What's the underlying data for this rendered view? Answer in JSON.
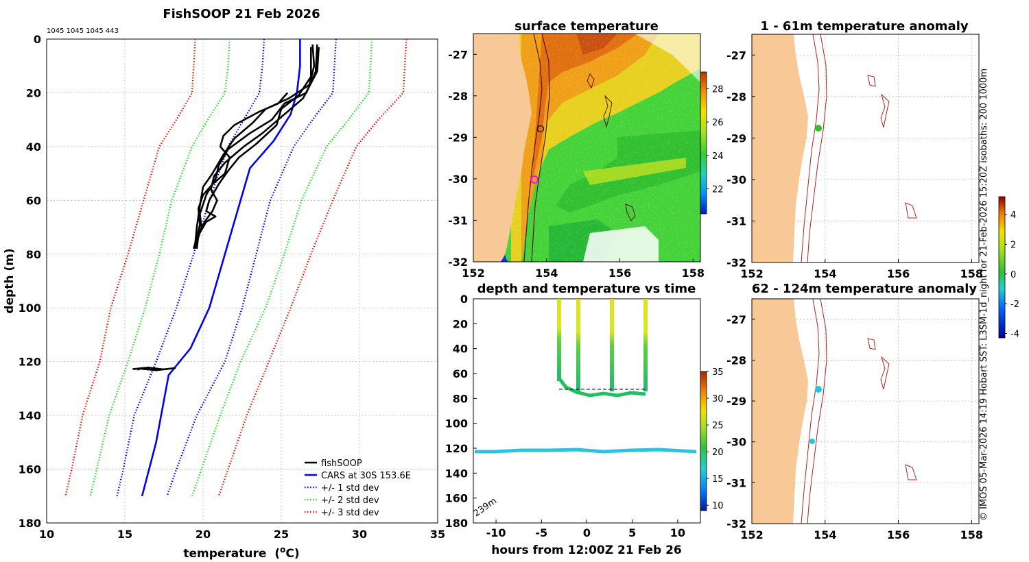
{
  "chart_data": [
    {
      "type": "line",
      "title": "FishSOOP 21 Feb 2026",
      "counts_label": "1045 1045 1045 443",
      "xlabel": "temperature",
      "xlabel_unit": "(",
      "xlabel_sup": "o",
      "xlabel_unit_end": "C)",
      "ylabel": "depth (m)",
      "xlim": [
        10,
        35
      ],
      "ylim": [
        180,
        0
      ],
      "xticks": [
        "10",
        "15",
        "20",
        "25",
        "30",
        "35"
      ],
      "yticks": [
        "0",
        "20",
        "40",
        "60",
        "80",
        "100",
        "120",
        "140",
        "160",
        "180"
      ],
      "legend": [
        {
          "label": "fishSOOP",
          "color": "#000000",
          "style": "solid"
        },
        {
          "label": "CARS at 30S 153.6E",
          "color": "#0000ee",
          "style": "solid"
        },
        {
          "label": "+/- 1 std dev",
          "color": "#0000ee",
          "style": "dotted"
        },
        {
          "label": "+/- 2 std dev",
          "color": "#22dd22",
          "style": "dotted"
        },
        {
          "label": "+/- 3 std dev",
          "color": "#ee1100",
          "style": "dotted"
        }
      ],
      "series": [
        {
          "name": "CARS at 30S 153.6E",
          "color": "#0000ee",
          "style": "solid",
          "points": [
            [
              26.2,
              0
            ],
            [
              26.2,
              10
            ],
            [
              26.0,
              20
            ],
            [
              25.6,
              28
            ],
            [
              24.5,
              38
            ],
            [
              23.0,
              48
            ],
            [
              22.4,
              60
            ],
            [
              21.4,
              80
            ],
            [
              20.4,
              100
            ],
            [
              19.2,
              115
            ],
            [
              17.8,
              125
            ],
            [
              17.0,
              150
            ],
            [
              16.1,
              170
            ]
          ]
        },
        {
          "name": "+1 std dev",
          "color": "#0000ee",
          "style": "dotted",
          "points": [
            [
              28.5,
              0
            ],
            [
              28.4,
              10
            ],
            [
              28.3,
              20
            ],
            [
              27.0,
              30
            ],
            [
              25.8,
              40
            ],
            [
              24.3,
              60
            ],
            [
              23.4,
              80
            ],
            [
              22.5,
              100
            ],
            [
              21.4,
              120
            ],
            [
              19.6,
              140
            ],
            [
              18.3,
              160
            ],
            [
              17.7,
              170
            ]
          ]
        },
        {
          "name": "-1 std dev",
          "color": "#0000ee",
          "style": "dotted",
          "points": [
            [
              23.9,
              0
            ],
            [
              23.8,
              10
            ],
            [
              23.6,
              20
            ],
            [
              22.6,
              30
            ],
            [
              21.6,
              40
            ],
            [
              20.4,
              60
            ],
            [
              19.4,
              80
            ],
            [
              18.3,
              100
            ],
            [
              17.0,
              120
            ],
            [
              15.6,
              140
            ],
            [
              14.9,
              160
            ],
            [
              14.5,
              170
            ]
          ]
        },
        {
          "name": "+2 std dev",
          "color": "#22dd22",
          "style": "dotted",
          "points": [
            [
              30.8,
              0
            ],
            [
              30.7,
              10
            ],
            [
              30.6,
              20
            ],
            [
              29.3,
              30
            ],
            [
              27.9,
              40
            ],
            [
              26.3,
              60
            ],
            [
              25.2,
              80
            ],
            [
              24.0,
              100
            ],
            [
              22.4,
              120
            ],
            [
              21.1,
              140
            ],
            [
              19.9,
              160
            ],
            [
              19.3,
              170
            ]
          ]
        },
        {
          "name": "-2 std dev",
          "color": "#22dd22",
          "style": "dotted",
          "points": [
            [
              21.7,
              0
            ],
            [
              21.6,
              10
            ],
            [
              21.4,
              20
            ],
            [
              20.3,
              30
            ],
            [
              19.3,
              40
            ],
            [
              18.0,
              60
            ],
            [
              17.2,
              80
            ],
            [
              16.3,
              100
            ],
            [
              15.2,
              120
            ],
            [
              14.0,
              140
            ],
            [
              13.2,
              160
            ],
            [
              12.8,
              170
            ]
          ]
        },
        {
          "name": "+3 std dev",
          "color": "#ee1100",
          "style": "dotted",
          "points": [
            [
              33.0,
              0
            ],
            [
              32.9,
              10
            ],
            [
              32.8,
              20
            ],
            [
              31.2,
              30
            ],
            [
              29.8,
              40
            ],
            [
              28.3,
              60
            ],
            [
              26.9,
              80
            ],
            [
              25.6,
              100
            ],
            [
              24.2,
              120
            ],
            [
              22.8,
              140
            ],
            [
              21.6,
              160
            ],
            [
              21.0,
              170
            ]
          ]
        },
        {
          "name": "-3 std dev",
          "color": "#ee1100",
          "style": "dotted",
          "points": [
            [
              19.5,
              0
            ],
            [
              19.4,
              10
            ],
            [
              19.3,
              20
            ],
            [
              18.3,
              30
            ],
            [
              17.2,
              40
            ],
            [
              16.2,
              60
            ],
            [
              15.2,
              80
            ],
            [
              14.1,
              100
            ],
            [
              13.4,
              120
            ],
            [
              12.3,
              140
            ],
            [
              11.6,
              160
            ],
            [
              11.2,
              170
            ]
          ]
        },
        {
          "name": "fishSOOP",
          "color": "#000000",
          "style": "solid",
          "points": [
            [
              27.0,
              2
            ],
            [
              27.1,
              10
            ],
            [
              26.8,
              17
            ],
            [
              25.5,
              22
            ],
            [
              24.0,
              26
            ],
            [
              23.2,
              31
            ],
            [
              22.0,
              37
            ],
            [
              21.3,
              43
            ],
            [
              20.6,
              50
            ],
            [
              20.0,
              55
            ],
            [
              19.8,
              62
            ],
            [
              19.6,
              70
            ],
            [
              19.5,
              76
            ],
            [
              19.4,
              78
            ]
          ]
        },
        {
          "name": "fishSOOP",
          "color": "#000000",
          "style": "solid",
          "points": [
            [
              27.3,
              2
            ],
            [
              27.2,
              12
            ],
            [
              26.6,
              20
            ],
            [
              25.2,
              24
            ],
            [
              24.4,
              30
            ],
            [
              23.0,
              35
            ],
            [
              21.6,
              41
            ],
            [
              21.0,
              47
            ],
            [
              20.8,
              52
            ],
            [
              20.2,
              58
            ],
            [
              19.8,
              65
            ],
            [
              19.9,
              70
            ],
            [
              19.6,
              75
            ],
            [
              19.5,
              78
            ]
          ]
        },
        {
          "name": "fishSOOP",
          "color": "#000000",
          "style": "solid",
          "points": [
            [
              26.9,
              3
            ],
            [
              26.9,
              14
            ],
            [
              26.1,
              21
            ],
            [
              25.0,
              26
            ],
            [
              24.7,
              32
            ],
            [
              23.4,
              39
            ],
            [
              22.3,
              44
            ],
            [
              21.6,
              49
            ],
            [
              21.0,
              54
            ],
            [
              20.4,
              60
            ],
            [
              20.2,
              64
            ],
            [
              20.8,
              66
            ],
            [
              20.2,
              68
            ],
            [
              19.8,
              72
            ],
            [
              19.5,
              77
            ]
          ]
        },
        {
          "name": "fishSOOP",
          "color": "#000000",
          "style": "solid",
          "points": [
            [
              27.4,
              3
            ],
            [
              27.3,
              12
            ],
            [
              26.4,
              22
            ],
            [
              25.6,
              26
            ],
            [
              24.8,
              30
            ],
            [
              23.8,
              35
            ],
            [
              22.6,
              40
            ],
            [
              21.4,
              46
            ],
            [
              20.7,
              51
            ],
            [
              20.5,
              56
            ],
            [
              20.9,
              60
            ],
            [
              20.6,
              64
            ],
            [
              20.1,
              68
            ],
            [
              19.7,
              73
            ],
            [
              19.6,
              78
            ]
          ]
        },
        {
          "name": "fishSOOP",
          "color": "#000000",
          "style": "solid",
          "points": [
            [
              25.4,
              20
            ],
            [
              24.8,
              24
            ],
            [
              23.6,
              27
            ],
            [
              22.0,
              32
            ],
            [
              21.3,
              36
            ],
            [
              21.1,
              40
            ],
            [
              21.7,
              44
            ],
            [
              21.4,
              50
            ],
            [
              20.6,
              54
            ],
            [
              20.0,
              58
            ],
            [
              19.7,
              63
            ],
            [
              19.8,
              69
            ],
            [
              19.6,
              74
            ],
            [
              19.4,
              78
            ]
          ]
        },
        {
          "name": "fishSOOP",
          "color": "#000000",
          "style": "solid",
          "points": [
            [
              15.5,
              122.8
            ],
            [
              16.5,
              122.2
            ],
            [
              17.5,
              122.9
            ],
            [
              18.2,
              122.4
            ],
            [
              17.0,
              123.2
            ],
            [
              16.0,
              122.6
            ],
            [
              15.8,
              123.0
            ]
          ]
        }
      ]
    },
    {
      "type": "heatmap",
      "title": "surface temperature",
      "xticks": [
        "152",
        "154",
        "156",
        "158"
      ],
      "yticks": [
        "-27",
        "-28",
        "-29",
        "-30",
        "-31",
        "-32"
      ],
      "xlim": [
        152,
        158.2
      ],
      "ylim": [
        -32,
        -26.5
      ],
      "colorbar": {
        "range": [
          20.5,
          29
        ],
        "ticks": [
          "22",
          "24",
          "26",
          "28"
        ]
      }
    },
    {
      "type": "scatter",
      "title": "1 - 61m temperature anomaly",
      "xticks": [
        "152",
        "154",
        "156",
        "158"
      ],
      "yticks": [
        "-27",
        "-28",
        "-29",
        "-30",
        "-31",
        "-32"
      ],
      "xlim": [
        152,
        158.2
      ],
      "ylim": [
        -32,
        -26.5
      ],
      "points": [
        {
          "lon": 153.72,
          "lat": -28.75,
          "anomaly": 0.2
        }
      ]
    },
    {
      "type": "scatter",
      "title": "depth and temperature vs time",
      "xlabel": "hours from 12:00Z 21 Feb 26",
      "xticks": [
        "-10",
        "-5",
        "0",
        "5",
        "10"
      ],
      "yticks": [
        "0",
        "20",
        "40",
        "60",
        "80",
        "100",
        "120",
        "140",
        "160",
        "180"
      ],
      "xlim": [
        -12.5,
        12.5
      ],
      "ylim": [
        180,
        0
      ],
      "annotation": "239m",
      "colorbar": {
        "range": [
          9,
          35
        ],
        "ticks": [
          "10",
          "15",
          "20",
          "25",
          "30",
          "35"
        ]
      }
    },
    {
      "type": "scatter",
      "title": "62 - 124m temperature anomaly",
      "xticks": [
        "152",
        "154",
        "156",
        "158"
      ],
      "yticks": [
        "-27",
        "-28",
        "-29",
        "-30",
        "-31",
        "-32"
      ],
      "xlim": [
        152,
        158.2
      ],
      "ylim": [
        -32,
        -26.5
      ],
      "points": [
        {
          "lon": 153.72,
          "lat": -28.75,
          "anomaly": -1.3
        },
        {
          "lon": 153.55,
          "lat": -30.05,
          "anomaly": -1.2
        }
      ],
      "colorbar": {
        "range": [
          -4.3,
          5.2
        ],
        "ticks": [
          "4",
          "2",
          "0",
          "-2",
          "-4"
        ]
      }
    }
  ],
  "side_note": "© IMOS 05-Mar-2026 14:19 Hobart SST: L3SM-1d_night for 21-Feb-2026 15:20Z isobaths: 200  1000m"
}
